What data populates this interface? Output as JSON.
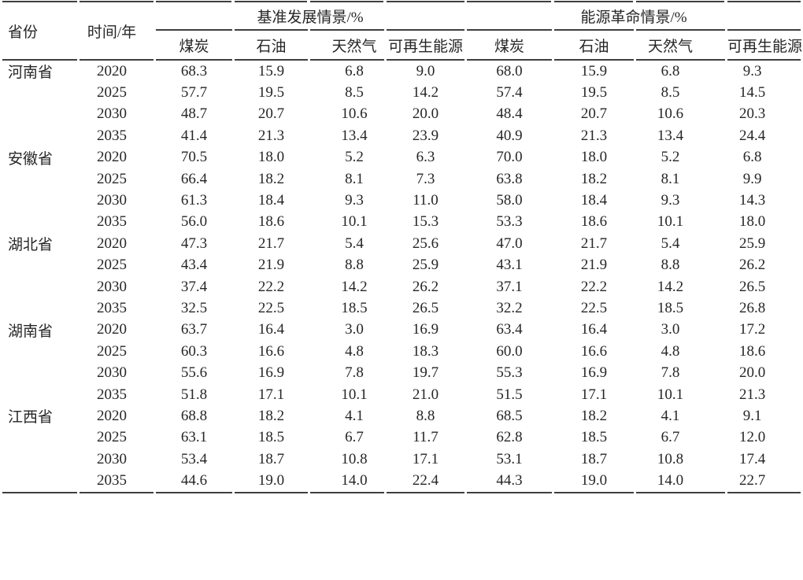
{
  "colors": {
    "background": "#ffffff",
    "text": "#262626",
    "rule": "#3f3f3f"
  },
  "table": {
    "header": {
      "province": "省份",
      "time_year": "时间/年",
      "baseline_group": "基准发展情景/%",
      "revolution_group": "能源革命情景/%",
      "sub": [
        "煤炭",
        "石油",
        "天然气",
        "可再生能源"
      ]
    },
    "provinces": [
      {
        "name": "河南省",
        "rows": [
          {
            "year": "2020",
            "baseline": [
              "68.3",
              "15.9",
              "6.8",
              "9.0"
            ],
            "revolution": [
              "68.0",
              "15.9",
              "6.8",
              "9.3"
            ]
          },
          {
            "year": "2025",
            "baseline": [
              "57.7",
              "19.5",
              "8.5",
              "14.2"
            ],
            "revolution": [
              "57.4",
              "19.5",
              "8.5",
              "14.5"
            ]
          },
          {
            "year": "2030",
            "baseline": [
              "48.7",
              "20.7",
              "10.6",
              "20.0"
            ],
            "revolution": [
              "48.4",
              "20.7",
              "10.6",
              "20.3"
            ]
          },
          {
            "year": "2035",
            "baseline": [
              "41.4",
              "21.3",
              "13.4",
              "23.9"
            ],
            "revolution": [
              "40.9",
              "21.3",
              "13.4",
              "24.4"
            ]
          }
        ]
      },
      {
        "name": "安徽省",
        "rows": [
          {
            "year": "2020",
            "baseline": [
              "70.5",
              "18.0",
              "5.2",
              "6.3"
            ],
            "revolution": [
              "70.0",
              "18.0",
              "5.2",
              "6.8"
            ]
          },
          {
            "year": "2025",
            "baseline": [
              "66.4",
              "18.2",
              "8.1",
              "7.3"
            ],
            "revolution": [
              "63.8",
              "18.2",
              "8.1",
              "9.9"
            ]
          },
          {
            "year": "2030",
            "baseline": [
              "61.3",
              "18.4",
              "9.3",
              "11.0"
            ],
            "revolution": [
              "58.0",
              "18.4",
              "9.3",
              "14.3"
            ]
          },
          {
            "year": "2035",
            "baseline": [
              "56.0",
              "18.6",
              "10.1",
              "15.3"
            ],
            "revolution": [
              "53.3",
              "18.6",
              "10.1",
              "18.0"
            ]
          }
        ]
      },
      {
        "name": "湖北省",
        "rows": [
          {
            "year": "2020",
            "baseline": [
              "47.3",
              "21.7",
              "5.4",
              "25.6"
            ],
            "revolution": [
              "47.0",
              "21.7",
              "5.4",
              "25.9"
            ]
          },
          {
            "year": "2025",
            "baseline": [
              "43.4",
              "21.9",
              "8.8",
              "25.9"
            ],
            "revolution": [
              "43.1",
              "21.9",
              "8.8",
              "26.2"
            ]
          },
          {
            "year": "2030",
            "baseline": [
              "37.4",
              "22.2",
              "14.2",
              "26.2"
            ],
            "revolution": [
              "37.1",
              "22.2",
              "14.2",
              "26.5"
            ]
          },
          {
            "year": "2035",
            "baseline": [
              "32.5",
              "22.5",
              "18.5",
              "26.5"
            ],
            "revolution": [
              "32.2",
              "22.5",
              "18.5",
              "26.8"
            ]
          }
        ]
      },
      {
        "name": "湖南省",
        "rows": [
          {
            "year": "2020",
            "baseline": [
              "63.7",
              "16.4",
              "3.0",
              "16.9"
            ],
            "revolution": [
              "63.4",
              "16.4",
              "3.0",
              "17.2"
            ]
          },
          {
            "year": "2025",
            "baseline": [
              "60.3",
              "16.6",
              "4.8",
              "18.3"
            ],
            "revolution": [
              "60.0",
              "16.6",
              "4.8",
              "18.6"
            ]
          },
          {
            "year": "2030",
            "baseline": [
              "55.6",
              "16.9",
              "7.8",
              "19.7"
            ],
            "revolution": [
              "55.3",
              "16.9",
              "7.8",
              "20.0"
            ]
          },
          {
            "year": "2035",
            "baseline": [
              "51.8",
              "17.1",
              "10.1",
              "21.0"
            ],
            "revolution": [
              "51.5",
              "17.1",
              "10.1",
              "21.3"
            ]
          }
        ]
      },
      {
        "name": "江西省",
        "rows": [
          {
            "year": "2020",
            "baseline": [
              "68.8",
              "18.2",
              "4.1",
              "8.8"
            ],
            "revolution": [
              "68.5",
              "18.2",
              "4.1",
              "9.1"
            ]
          },
          {
            "year": "2025",
            "baseline": [
              "63.1",
              "18.5",
              "6.7",
              "11.7"
            ],
            "revolution": [
              "62.8",
              "18.5",
              "6.7",
              "12.0"
            ]
          },
          {
            "year": "2030",
            "baseline": [
              "53.4",
              "18.7",
              "10.8",
              "17.1"
            ],
            "revolution": [
              "53.1",
              "18.7",
              "10.8",
              "17.4"
            ]
          },
          {
            "year": "2035",
            "baseline": [
              "44.6",
              "19.0",
              "14.0",
              "22.4"
            ],
            "revolution": [
              "44.3",
              "19.0",
              "14.0",
              "22.7"
            ]
          }
        ]
      }
    ]
  }
}
